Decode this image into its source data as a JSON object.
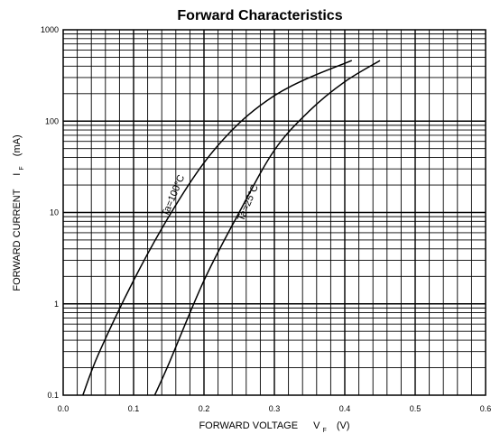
{
  "chart_data": {
    "type": "line",
    "title": "Forward Characteristics",
    "xlabel": "FORWARD VOLTAGE",
    "xlabel_symbol": "V",
    "xlabel_subscript": "F",
    "xlabel_unit": "(V)",
    "ylabel": "FORWARD CURRENT",
    "ylabel_symbol": "I",
    "ylabel_subscript": "F",
    "ylabel_unit": "(mA)",
    "xlim": [
      0.0,
      0.6
    ],
    "ylim": [
      0.1,
      1000
    ],
    "y_scale": "log",
    "grid": true,
    "x_ticks": [
      "0.0",
      "0.1",
      "0.2",
      "0.3",
      "0.4",
      "0.5",
      "0.6"
    ],
    "y_ticks": [
      "0.1",
      "1",
      "10",
      "100",
      "1000"
    ],
    "series": [
      {
        "name": "Ta=100°C",
        "x": [
          0.028,
          0.05,
          0.1,
          0.15,
          0.2,
          0.25,
          0.3,
          0.35,
          0.41
        ],
        "y": [
          0.1,
          0.28,
          1.8,
          9,
          35,
          95,
          190,
          300,
          460
        ]
      },
      {
        "name": "Ta=25°C",
        "x": [
          0.13,
          0.15,
          0.2,
          0.25,
          0.3,
          0.35,
          0.4,
          0.45
        ],
        "y": [
          0.1,
          0.22,
          1.8,
          10,
          48,
          130,
          270,
          460
        ]
      }
    ]
  }
}
